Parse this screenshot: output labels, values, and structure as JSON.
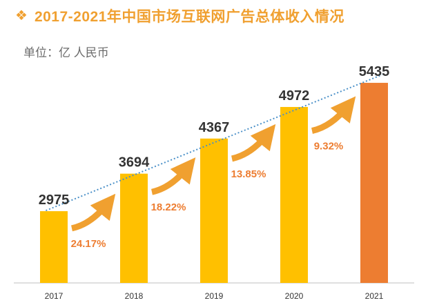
{
  "header": {
    "bullet": "❖",
    "title": "2017-2021年中国市场互联网广告总体收入情况",
    "unit": "单位：亿 人民币"
  },
  "colors": {
    "title": "#F0A030",
    "bar": "#FFC000",
    "bar_highlight": "#ED7D31",
    "growth_text": "#ED7D31",
    "trendline": "#4A90C8",
    "arrow": "#F0A030",
    "axis": "#BFBFBF"
  },
  "icons": {
    "growth_arrow": "curved-up-arrow-icon"
  },
  "chart_data": {
    "type": "bar",
    "title": "2017-2021年中国市场互联网广告总体收入情况",
    "ylabel": "单位：亿 人民币",
    "categories": [
      "2017",
      "2018",
      "2019",
      "2020",
      "2021"
    ],
    "values": [
      2975,
      3694,
      4367,
      4972,
      5435
    ],
    "value_labels": [
      "2975",
      "3694",
      "4367",
      "4972",
      "5435"
    ],
    "highlight_index": 4,
    "growth_rates": [
      "24.17%",
      "18.22%",
      "13.85%",
      "9.32%"
    ],
    "trendline": "linear, dotted",
    "ylim": [
      1600,
      5700
    ],
    "grid": false,
    "legend": "none"
  }
}
